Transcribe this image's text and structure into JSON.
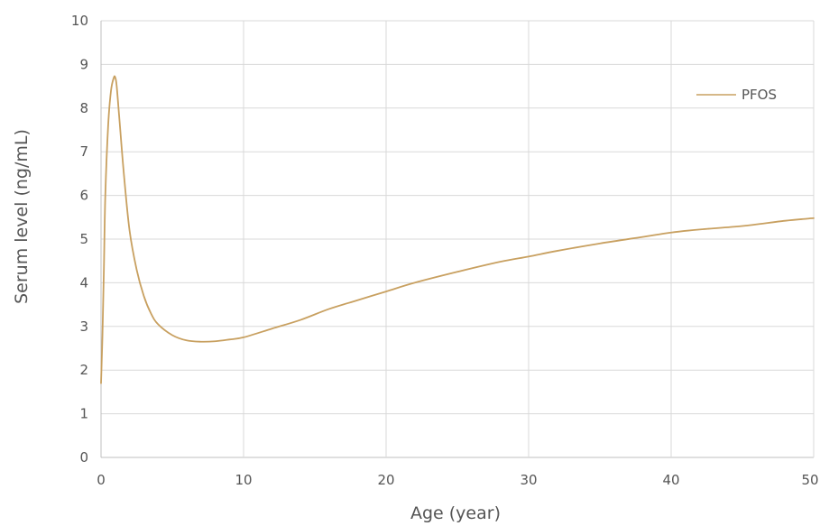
{
  "chart_data": {
    "type": "line",
    "title": "",
    "xlabel": "Age (year)",
    "ylabel": "Serum level (ng/mL)",
    "xlim": [
      0,
      50
    ],
    "ylim": [
      0,
      10
    ],
    "x_ticks": [
      "0",
      "10",
      "20",
      "30",
      "40",
      "50"
    ],
    "y_ticks": [
      "0",
      "1",
      "2",
      "3",
      "4",
      "5",
      "6",
      "7",
      "8",
      "9",
      "10"
    ],
    "grid": true,
    "legend_position": "top-right",
    "series": [
      {
        "name": "PFOS",
        "color": "#c8a060",
        "x": [
          0,
          0.1,
          0.2,
          0.3,
          0.5,
          0.7,
          0.9,
          1.0,
          1.1,
          1.3,
          1.6,
          2.0,
          2.5,
          3.0,
          3.5,
          4.0,
          5.0,
          6.0,
          7.0,
          8.0,
          9.0,
          10.0,
          12.0,
          14.0,
          16.0,
          18.0,
          20.0,
          22.0,
          25.0,
          28.0,
          30.0,
          32.0,
          35.0,
          38.0,
          40.0,
          42.0,
          45.0,
          48.0,
          50.0
        ],
        "y": [
          1.7,
          2.8,
          4.3,
          6.0,
          7.6,
          8.4,
          8.7,
          8.7,
          8.5,
          7.7,
          6.5,
          5.2,
          4.3,
          3.7,
          3.3,
          3.05,
          2.8,
          2.68,
          2.65,
          2.66,
          2.7,
          2.75,
          2.95,
          3.15,
          3.4,
          3.6,
          3.8,
          4.0,
          4.25,
          4.48,
          4.6,
          4.73,
          4.9,
          5.05,
          5.15,
          5.22,
          5.3,
          5.42,
          5.48
        ]
      }
    ]
  }
}
